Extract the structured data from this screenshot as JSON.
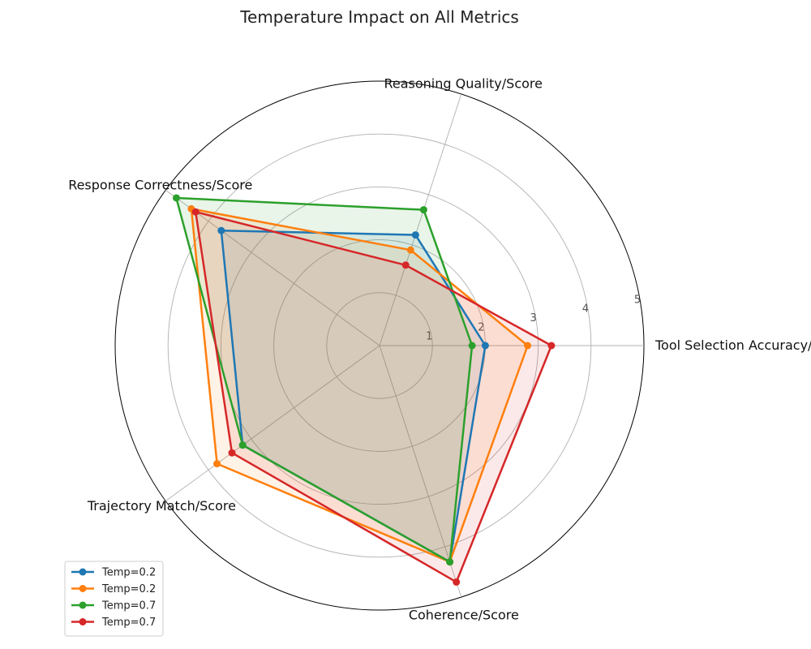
{
  "chart_data": {
    "type": "radar",
    "title": "Temperature Impact on All Metrics",
    "axes": [
      "Tool Selection Accuracy/Score",
      "Reasoning Quality/Score",
      "Response Correctness/Score",
      "Trajectory Match/Score",
      "Coherence/Score"
    ],
    "rlim": [
      0,
      5
    ],
    "rticks": [
      "1",
      "2",
      "3",
      "4",
      "5"
    ],
    "grid": true,
    "legend_position": "bottom-left",
    "series": [
      {
        "name": "Temp=0.2",
        "color": "#1f77b4",
        "values": [
          2.0,
          2.2,
          3.7,
          3.2,
          4.3
        ]
      },
      {
        "name": "Temp=0.2",
        "color": "#ff7f0e",
        "values": [
          2.8,
          1.9,
          4.4,
          3.8,
          4.3
        ]
      },
      {
        "name": "Temp=0.7",
        "color": "#2ca02c",
        "values": [
          1.75,
          2.7,
          4.75,
          3.2,
          4.3
        ]
      },
      {
        "name": "Temp=0.7",
        "color": "#d62728",
        "values": [
          3.25,
          1.6,
          4.3,
          3.45,
          4.7
        ]
      }
    ]
  }
}
